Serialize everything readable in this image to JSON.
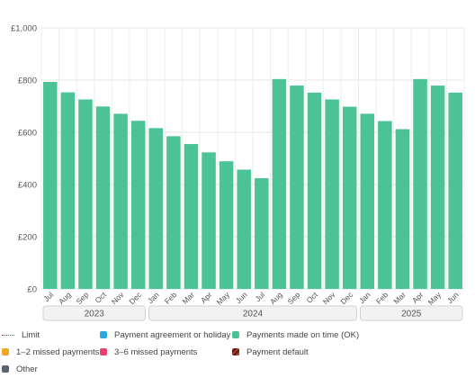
{
  "chart_data": {
    "type": "bar",
    "ylim": [
      0,
      1000
    ],
    "yticks": [
      0,
      200,
      400,
      600,
      800,
      1000
    ],
    "ytick_labels": [
      "£0",
      "£200",
      "£400",
      "£600",
      "£800",
      "£1,000"
    ],
    "categories": [
      "Jul",
      "Aug",
      "Sep",
      "Oct",
      "Nov",
      "Dec",
      "Jan",
      "Feb",
      "Mar",
      "Apr",
      "May",
      "Jun",
      "Jul",
      "Aug",
      "Sep",
      "Oct",
      "Nov",
      "Dec",
      "Jan",
      "Feb",
      "Mar",
      "Apr",
      "May",
      "Jun"
    ],
    "values": [
      793,
      753,
      726,
      699,
      671,
      644,
      616,
      585,
      555,
      523,
      489,
      457,
      424,
      804,
      779,
      752,
      726,
      698,
      671,
      643,
      612,
      804,
      779,
      752
    ],
    "year_groups": [
      {
        "label": "2023",
        "start": 0,
        "end": 5
      },
      {
        "label": "2024",
        "start": 6,
        "end": 17
      },
      {
        "label": "2025",
        "start": 18,
        "end": 23
      }
    ],
    "bar_color": "#4cc297",
    "grid": true
  },
  "legend": {
    "items": [
      {
        "label": "Limit",
        "color": "#b0306a",
        "kind": "limit"
      },
      {
        "label": "Payment agreement or holiday",
        "color": "#2aa9e0"
      },
      {
        "label": "Payments made on time (OK)",
        "color": "#4cc297"
      },
      {
        "label": "1–2 missed payments",
        "color": "#f5a623"
      },
      {
        "label": "3–6 missed payments",
        "color": "#e8416f"
      },
      {
        "label": "Payment default",
        "color": "#c0392b",
        "kind": "default"
      },
      {
        "label": "Other",
        "color": "#5a6472"
      }
    ]
  }
}
